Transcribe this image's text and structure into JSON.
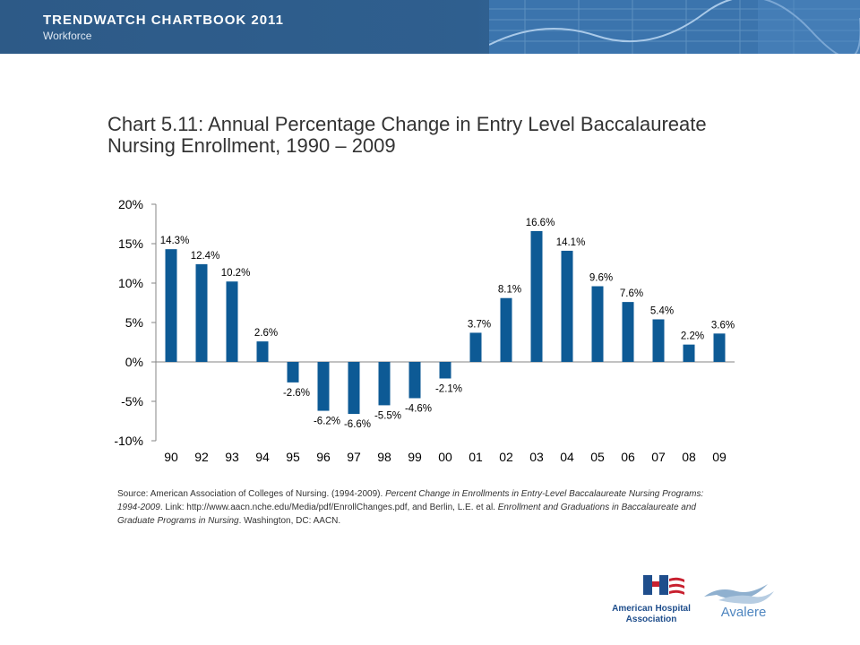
{
  "header": {
    "title": "TRENDWATCH CHARTBOOK 2011",
    "subtitle": "Workforce"
  },
  "chart_title_line1": "Chart 5.11: Annual Percentage Change in Entry Level Baccalaureate",
  "chart_title_line2": "Nursing Enrollment, 1990 – 2009",
  "chart_data": {
    "type": "bar",
    "categories": [
      "90",
      "92",
      "93",
      "94",
      "95",
      "96",
      "97",
      "98",
      "99",
      "00",
      "01",
      "02",
      "03",
      "04",
      "05",
      "06",
      "07",
      "08",
      "09"
    ],
    "values": [
      14.3,
      12.4,
      10.2,
      2.6,
      -2.6,
      -6.2,
      -6.6,
      -5.5,
      -4.6,
      -2.1,
      3.7,
      8.1,
      16.6,
      14.1,
      9.6,
      7.6,
      5.4,
      2.2,
      3.6
    ],
    "data_labels": [
      "14.3%",
      "12.4%",
      "10.2%",
      "2.6%",
      "-2.6%",
      "-6.2%",
      "-6.6%",
      "-5.5%",
      "-4.6%",
      "-2.1%",
      "3.7%",
      "8.1%",
      "16.6%",
      "14.1%",
      "9.6%",
      "7.6%",
      "5.4%",
      "2.2%",
      "3.6%"
    ],
    "yticks": [
      20,
      15,
      10,
      5,
      0,
      -5,
      -10
    ],
    "ytick_labels": [
      "20%",
      "15%",
      "10%",
      "5%",
      "0%",
      "-5%",
      "-10%"
    ],
    "ylim": [
      -10,
      20
    ],
    "grid": false,
    "bar_color": "#0d5a95"
  },
  "source": {
    "prefix": "Source: American Association of Colleges of Nursing. (1994-2009). ",
    "title1": "Percent Change in Enrollments in Entry-Level Baccalaureate Nursing Programs: 1994-2009",
    "middle": ". Link: http://www.aacn.nche.edu/Media/pdf/EnrollChanges.pdf, and Berlin, L.E. et al. ",
    "title2": "Enrollment and Graduations in Baccalaureate and Graduate Programs in Nursing",
    "suffix": ". Washington, DC: AACN."
  },
  "logos": {
    "aha_line1": "American Hospital",
    "aha_line2": "Association",
    "avalere": "Avalere"
  }
}
